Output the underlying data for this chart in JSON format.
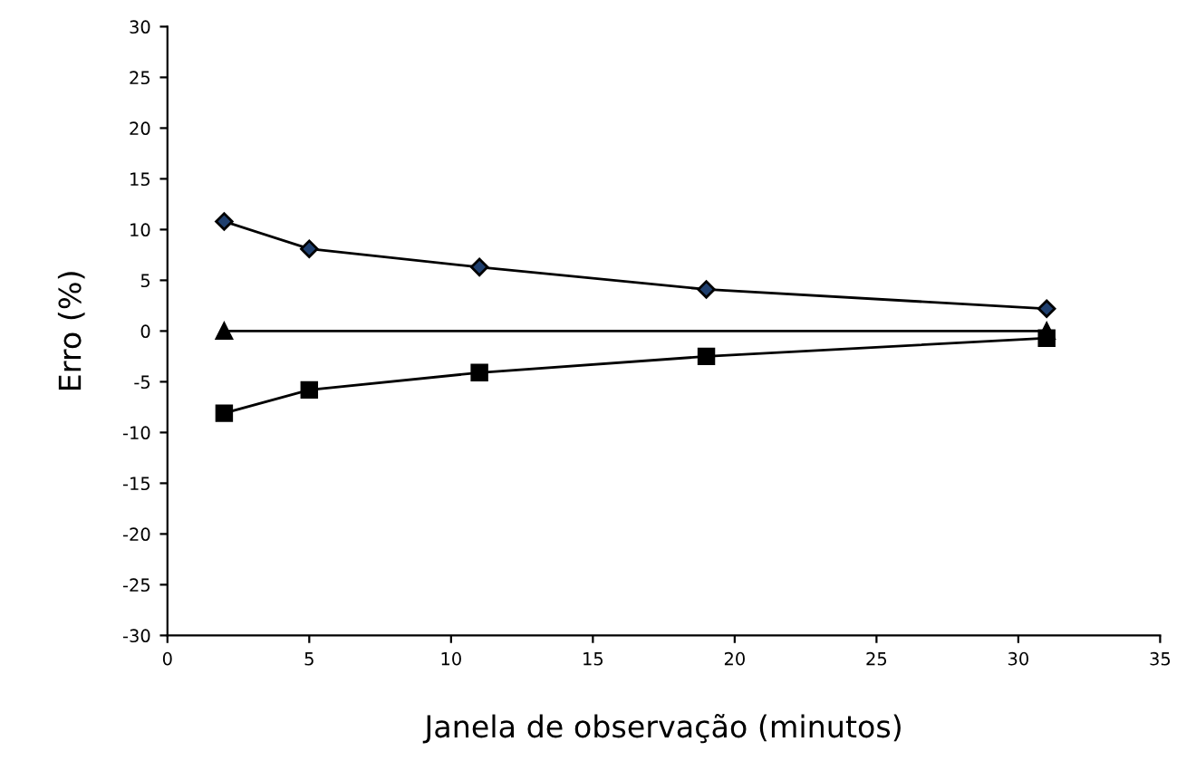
{
  "chart_data": {
    "type": "line",
    "xlabel": "Janela de observação (minutos)",
    "ylabel": "Erro (%)",
    "xlim": [
      0,
      35
    ],
    "xticks": [
      0,
      5,
      10,
      15,
      20,
      25,
      30,
      35
    ],
    "ylim": [
      -30,
      30
    ],
    "yticks": [
      -30,
      -25,
      -20,
      -15,
      -10,
      -5,
      0,
      5,
      10,
      15,
      20,
      25,
      30
    ],
    "grid": false,
    "line_style": "solid",
    "series": [
      {
        "color": "#000000",
        "marker": "diamond",
        "x": [
          2,
          5,
          11,
          19,
          31
        ],
        "values": [
          10.8,
          8.1,
          6.3,
          4.1,
          2.2
        ]
      },
      {
        "color": "#000000",
        "marker": "triangle",
        "x": [
          2,
          31
        ],
        "values": [
          0,
          0
        ]
      },
      {
        "color": "#000000",
        "marker": "square",
        "x": [
          2,
          5,
          11,
          19,
          31
        ],
        "values": [
          -8.1,
          -5.8,
          -4.1,
          -2.5,
          -0.7
        ]
      }
    ]
  }
}
